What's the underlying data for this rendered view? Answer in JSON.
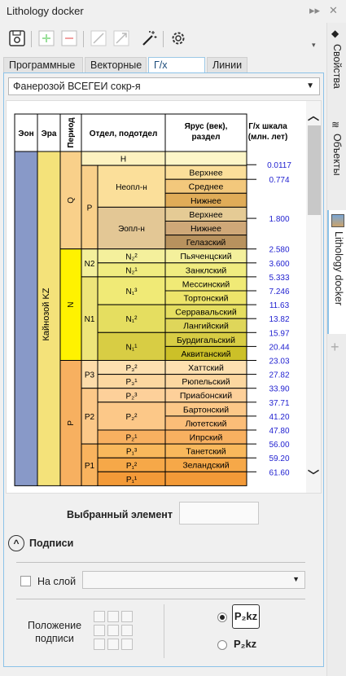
{
  "window": {
    "title": "Lithology docker"
  },
  "tabs": [
    "Программные",
    "Векторные",
    "Г/х шкала",
    "Линии"
  ],
  "dropdown": {
    "value": "Фанерозой ВСЕГЕИ сокр-я"
  },
  "chart_data": {
    "type": "table",
    "headers": {
      "eon": "Эон",
      "era": "Эра",
      "period": "Период",
      "series": "Отдел, подотдел",
      "stage": "Ярус (век), раздел",
      "age": "Г/х шкала (млн. лет)"
    },
    "era_label": "Кайнозой KZ",
    "periods": [
      "Q",
      "N",
      "P"
    ],
    "series": [
      "H",
      "P",
      "Неопл-н",
      "Эопл-н",
      "N2",
      "N1",
      "P3",
      "P2",
      "P1"
    ],
    "stages": [
      {
        "name": "",
        "color": "#fdf6c8"
      },
      {
        "name": "Верхнее",
        "color": "#fbdf9a"
      },
      {
        "name": "Среднее",
        "color": "#f3c87c"
      },
      {
        "name": "Нижнее",
        "color": "#e0ac58"
      },
      {
        "name": "Верхнее",
        "color": "#e5cb95"
      },
      {
        "name": "Нижнее",
        "color": "#cfa878"
      },
      {
        "name": "Гелазский",
        "color": "#b8925e"
      },
      {
        "name": "Пьяченцский",
        "color": "#f4f09c"
      },
      {
        "name": "Занклский",
        "color": "#f0ec80"
      },
      {
        "name": "Мессинский",
        "color": "#f0ea76"
      },
      {
        "name": "Тортонский",
        "color": "#ede46a"
      },
      {
        "name": "Серравальский",
        "color": "#e5de60"
      },
      {
        "name": "Лангийский",
        "color": "#dfd65a"
      },
      {
        "name": "Бурдигальский",
        "color": "#d8cd44"
      },
      {
        "name": "Аквитанский",
        "color": "#ccc028"
      },
      {
        "name": "Хаттский",
        "color": "#fde0b0"
      },
      {
        "name": "Рюпельский",
        "color": "#fcd7a0"
      },
      {
        "name": "Приабонский",
        "color": "#fdd09a"
      },
      {
        "name": "Бартонский",
        "color": "#fcc888"
      },
      {
        "name": "Лютетский",
        "color": "#fbbd78"
      },
      {
        "name": "Ипрский",
        "color": "#f8b060"
      },
      {
        "name": "Танетский",
        "color": "#f9b85c"
      },
      {
        "name": "Зеландский",
        "color": "#f6a848"
      },
      {
        "name": "",
        "color": "#f39a38"
      }
    ],
    "ages": [
      "0.0117",
      "0.774",
      "1.800",
      "2.580",
      "3.600",
      "5.333",
      "7.246",
      "11.63",
      "13.82",
      "15.97",
      "20.44",
      "23.03",
      "27.82",
      "33.90",
      "37.71",
      "41.20",
      "47.80",
      "56.00",
      "59.20",
      "61.60"
    ]
  },
  "selected": {
    "label": "Выбранный элемент",
    "value": ""
  },
  "captions": {
    "title": "Подписи",
    "on_layer": "На слой",
    "layer_value": "",
    "position_label": "Положение подписи",
    "sample1": "P₂kz",
    "sample2": "P₂kz"
  },
  "side_tabs": [
    "Свойства",
    "Объекты",
    "Lithology docker"
  ]
}
